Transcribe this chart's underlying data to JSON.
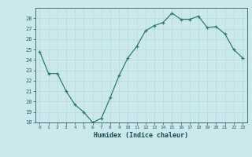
{
  "x": [
    0,
    1,
    2,
    3,
    4,
    5,
    6,
    7,
    8,
    9,
    10,
    11,
    12,
    13,
    14,
    15,
    16,
    17,
    18,
    19,
    20,
    21,
    22,
    23
  ],
  "y": [
    24.8,
    22.7,
    22.7,
    21.0,
    19.7,
    19.0,
    18.0,
    18.4,
    20.4,
    22.5,
    24.2,
    25.3,
    26.8,
    27.3,
    27.6,
    28.5,
    27.9,
    27.9,
    28.2,
    27.1,
    27.2,
    26.5,
    25.0,
    24.2
  ],
  "xlim": [
    0,
    23
  ],
  "ylim": [
    18,
    29
  ],
  "yticks": [
    18,
    19,
    20,
    21,
    22,
    23,
    24,
    25,
    26,
    27,
    28
  ],
  "xticks": [
    0,
    1,
    2,
    3,
    4,
    5,
    6,
    7,
    8,
    9,
    10,
    11,
    12,
    13,
    14,
    15,
    16,
    17,
    18,
    19,
    20,
    21,
    22,
    23
  ],
  "xlabel": "Humidex (Indice chaleur)",
  "line_color": "#2E7D6B",
  "marker": "+",
  "bg_color": "#CBE9EC",
  "grid_color": "#B8D8DC",
  "tick_label_color": "#2E6060",
  "axis_color": "#2E6060",
  "xlabel_color": "#1A4A4A"
}
